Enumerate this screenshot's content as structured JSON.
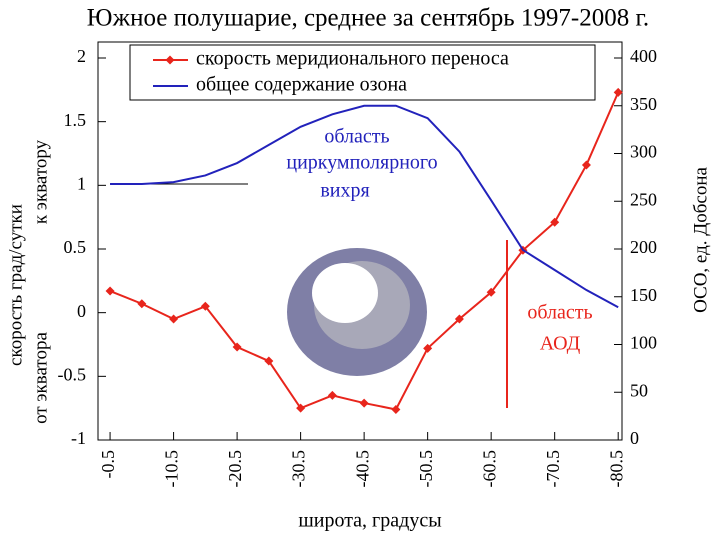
{
  "chart_data": {
    "type": "line",
    "title": "Южное полушарие, среднее за сентябрь 1997-2008 г.",
    "xlabel": "широта, градусы",
    "ylabel": "скорость град/сутки",
    "ylabel_top": "к экватору",
    "ylabel_bottom": "от экватора",
    "y2label": "ОСО, ед. Добсона",
    "x": [
      -0.5,
      -5.5,
      -10.5,
      -15.5,
      -20.5,
      -25.5,
      -30.5,
      -35.5,
      -40.5,
      -45.5,
      -50.5,
      -55.5,
      -60.5,
      -65.5,
      -70.5,
      -75.5,
      -80.5
    ],
    "series": [
      {
        "name": "скорость меридионального переноса",
        "color": "#e8251c",
        "marker": "diamond",
        "values": [
          0.17,
          0.07,
          -0.05,
          0.05,
          -0.27,
          -0.38,
          -0.75,
          -0.65,
          -0.71,
          -0.76,
          -0.28,
          -0.05,
          0.16,
          0.49,
          0.71,
          1.16,
          1.73
        ]
      },
      {
        "name": "общее содержание озона",
        "color": "#2222bb",
        "axis": "y2",
        "values": [
          268,
          268,
          270,
          277,
          290,
          309,
          328,
          341,
          350,
          350,
          337,
          302,
          251,
          199,
          178,
          157,
          139
        ]
      }
    ],
    "xlim": [
      1.4,
      -81.1
    ],
    "xticks": [
      -0.5,
      -10.5,
      -20.5,
      -30.5,
      -40.5,
      -50.5,
      -60.5,
      -70.5,
      -80.5
    ],
    "ylim": [
      -1,
      2
    ],
    "yticks": [
      -1,
      -0.5,
      0,
      0.5,
      1,
      1.5,
      2
    ],
    "y2lim": [
      0,
      400
    ],
    "y2ticks": [
      0,
      50,
      100,
      150,
      200,
      250,
      300,
      350,
      400
    ],
    "annotations": [
      "область",
      "циркумполярного",
      "вихря",
      "область",
      "АОД"
    ]
  }
}
